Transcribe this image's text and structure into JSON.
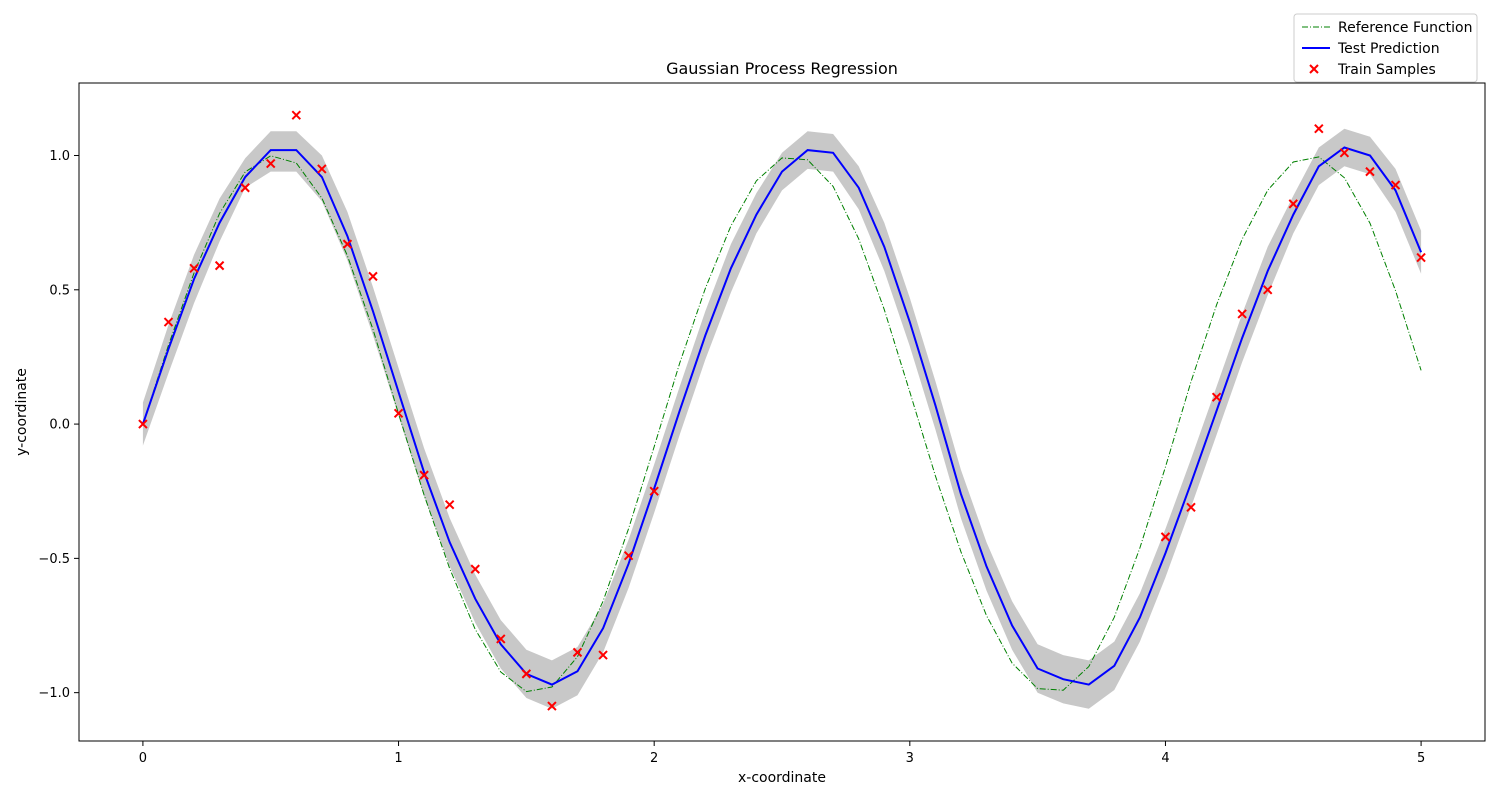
{
  "chart_data": {
    "type": "line",
    "title": "Gaussian Process Regression",
    "xlabel": "x-coordinate",
    "ylabel": "y-coordinate",
    "xlim": [
      -0.25,
      5.25
    ],
    "ylim": [
      -1.18,
      1.27
    ],
    "xticks": [
      0,
      1,
      2,
      3,
      4,
      5
    ],
    "xtick_labels": [
      "0",
      "1",
      "2",
      "3",
      "4",
      "5"
    ],
    "yticks": [
      -1.0,
      -0.5,
      0.0,
      0.5,
      1.0
    ],
    "ytick_labels": [
      "−1.0",
      "−0.5",
      "0.0",
      "0.5",
      "1.0"
    ],
    "grid": false,
    "legend": {
      "placement": "top-right",
      "entries": [
        "Reference Function",
        "Test Prediction",
        "Train Samples"
      ]
    },
    "colors": {
      "reference": "#008000",
      "prediction": "#0000ff",
      "samples": "#ff0000",
      "band": "#c8c8c8"
    },
    "reference_function": {
      "name": "Reference Function",
      "x": [
        0,
        0.1,
        0.2,
        0.3,
        0.4,
        0.5,
        0.6,
        0.7,
        0.8,
        0.9,
        1.0,
        1.1,
        1.2,
        1.3,
        1.4,
        1.5,
        1.6,
        1.7,
        1.8,
        1.9,
        2.0,
        2.1,
        2.2,
        2.3,
        2.4,
        2.5,
        2.6,
        2.7,
        2.8,
        2.9,
        3.0,
        3.1,
        3.2,
        3.3,
        3.4,
        3.5,
        3.6,
        3.7,
        3.8,
        3.9,
        4.0,
        4.1,
        4.2,
        4.3,
        4.4,
        4.5,
        4.6,
        4.7,
        4.8,
        4.9,
        5.0
      ],
      "y": [
        0.0,
        0.294,
        0.562,
        0.785,
        0.939,
        0.999,
        0.972,
        0.841,
        0.627,
        0.352,
        0.039,
        -0.264,
        -0.538,
        -0.764,
        -0.923,
        -0.996,
        -0.979,
        -0.866,
        -0.659,
        -0.389,
        -0.084,
        0.227,
        0.505,
        0.738,
        0.906,
        0.991,
        0.984,
        0.885,
        0.69,
        0.426,
        0.12,
        -0.193,
        -0.475,
        -0.713,
        -0.89,
        -0.985,
        -0.991,
        -0.903,
        -0.719,
        -0.461,
        -0.159,
        0.158,
        0.444,
        0.688,
        0.871,
        0.976,
        0.995,
        0.917,
        0.748,
        0.497,
        0.2
      ]
    },
    "test_prediction": {
      "name": "Test Prediction",
      "x": [
        0,
        0.1,
        0.2,
        0.3,
        0.4,
        0.5,
        0.6,
        0.7,
        0.8,
        0.9,
        1.0,
        1.1,
        1.2,
        1.3,
        1.4,
        1.5,
        1.6,
        1.7,
        1.8,
        1.9,
        2.0,
        2.1,
        2.2,
        2.3,
        2.4,
        2.5,
        2.6,
        2.7,
        2.8,
        2.9,
        3.0,
        3.1,
        3.2,
        3.3,
        3.4,
        3.5,
        3.6,
        3.7,
        3.8,
        3.9,
        4.0,
        4.1,
        4.2,
        4.3,
        4.4,
        4.5,
        4.6,
        4.7,
        4.8,
        4.9,
        5.0
      ],
      "y": [
        0.0,
        0.28,
        0.54,
        0.75,
        0.92,
        1.02,
        1.02,
        0.92,
        0.7,
        0.42,
        0.12,
        -0.18,
        -0.44,
        -0.65,
        -0.82,
        -0.93,
        -0.97,
        -0.92,
        -0.76,
        -0.52,
        -0.24,
        0.05,
        0.33,
        0.58,
        0.78,
        0.94,
        1.02,
        1.01,
        0.88,
        0.66,
        0.38,
        0.07,
        -0.26,
        -0.53,
        -0.75,
        -0.91,
        -0.95,
        -0.97,
        -0.9,
        -0.72,
        -0.48,
        -0.22,
        0.05,
        0.32,
        0.57,
        0.78,
        0.96,
        1.03,
        1.0,
        0.87,
        0.64
      ]
    },
    "confidence_band": {
      "x": [
        0,
        0.1,
        0.2,
        0.3,
        0.4,
        0.5,
        0.6,
        0.7,
        0.8,
        0.9,
        1.0,
        1.1,
        1.2,
        1.3,
        1.4,
        1.5,
        1.6,
        1.7,
        1.8,
        1.9,
        2.0,
        2.1,
        2.2,
        2.3,
        2.4,
        2.5,
        2.6,
        2.7,
        2.8,
        2.9,
        3.0,
        3.1,
        3.2,
        3.3,
        3.4,
        3.5,
        3.6,
        3.7,
        3.8,
        3.9,
        4.0,
        4.1,
        4.2,
        4.3,
        4.4,
        4.5,
        4.6,
        4.7,
        4.8,
        4.9,
        5.0
      ],
      "lower": [
        -0.08,
        0.19,
        0.45,
        0.68,
        0.88,
        0.94,
        0.94,
        0.83,
        0.61,
        0.33,
        0.03,
        -0.27,
        -0.53,
        -0.74,
        -0.91,
        -1.02,
        -1.06,
        -1.01,
        -0.85,
        -0.61,
        -0.33,
        -0.04,
        0.24,
        0.49,
        0.71,
        0.87,
        0.95,
        0.94,
        0.8,
        0.57,
        0.29,
        -0.02,
        -0.35,
        -0.62,
        -0.84,
        -1.0,
        -1.04,
        -1.06,
        -0.99,
        -0.81,
        -0.57,
        -0.31,
        -0.04,
        0.23,
        0.48,
        0.71,
        0.89,
        0.96,
        0.93,
        0.79,
        0.56
      ],
      "upper": [
        0.08,
        0.37,
        0.63,
        0.84,
        0.99,
        1.09,
        1.09,
        1.0,
        0.79,
        0.51,
        0.21,
        -0.09,
        -0.35,
        -0.56,
        -0.73,
        -0.84,
        -0.88,
        -0.83,
        -0.67,
        -0.43,
        -0.15,
        0.14,
        0.42,
        0.67,
        0.86,
        1.01,
        1.09,
        1.08,
        0.96,
        0.75,
        0.47,
        0.16,
        -0.17,
        -0.44,
        -0.66,
        -0.82,
        -0.86,
        -0.88,
        -0.81,
        -0.63,
        -0.39,
        -0.13,
        0.14,
        0.41,
        0.66,
        0.85,
        1.03,
        1.1,
        1.07,
        0.95,
        0.72
      ]
    },
    "train_samples": {
      "name": "Train Samples",
      "x": [
        0,
        0.1,
        0.2,
        0.3,
        0.4,
        0.5,
        0.6,
        0.7,
        0.8,
        0.9,
        1.0,
        1.1,
        1.2,
        1.3,
        1.4,
        1.5,
        1.6,
        1.7,
        1.8,
        1.9,
        2.0,
        4.0,
        4.1,
        4.2,
        4.3,
        4.4,
        4.5,
        4.6,
        4.7,
        4.8,
        4.9,
        5.0
      ],
      "y": [
        0.0,
        0.38,
        0.58,
        0.59,
        0.88,
        0.97,
        1.15,
        0.95,
        0.67,
        0.55,
        0.04,
        -0.19,
        -0.3,
        -0.54,
        -0.8,
        -0.93,
        -1.05,
        -0.85,
        -0.86,
        -0.49,
        -0.25,
        -0.42,
        -0.31,
        0.1,
        0.41,
        0.5,
        0.82,
        1.1,
        1.01,
        0.94,
        0.89,
        0.62
      ]
    }
  }
}
